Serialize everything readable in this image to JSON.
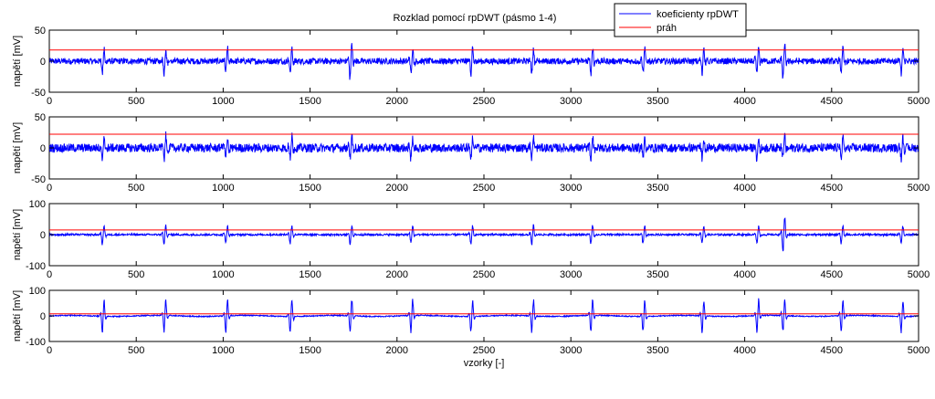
{
  "chart_data": {
    "type": "line",
    "title": "Rozklad pomocí rpDWT (pásmo 1-4)",
    "xlabel": "vzorky [-]",
    "xlim": [
      0,
      5000
    ],
    "xticks": [
      0,
      500,
      1000,
      1500,
      2000,
      2500,
      3000,
      3500,
      4000,
      4500,
      5000
    ],
    "legend": {
      "placement": "top-right",
      "entries": [
        {
          "name": "koeficienty rpDWT",
          "color": "#0000ff"
        },
        {
          "name": "práh",
          "color": "#ff0000"
        }
      ]
    },
    "grid": false,
    "beats": [
      310,
      665,
      1020,
      1390,
      1735,
      2085,
      2430,
      2780,
      3120,
      3420,
      3760,
      4075,
      4225,
      4560,
      4905
    ],
    "panels": [
      {
        "ylabel": "napětí [mV]",
        "ylim": [
          -50,
          50
        ],
        "yticks": [
          -50,
          0,
          50
        ],
        "threshold": 18,
        "noise_amplitude": 5,
        "peak_amplitude": 25,
        "series": [
          {
            "name": "koeficienty rpDWT",
            "color": "#0000ff"
          },
          {
            "name": "práh",
            "color": "#ff0000"
          }
        ]
      },
      {
        "ylabel": "napětí [mV]",
        "ylim": [
          -50,
          50
        ],
        "yticks": [
          -50,
          0,
          50
        ],
        "threshold": 22,
        "noise_amplitude": 7,
        "peak_amplitude": 22,
        "series": [
          {
            "name": "koeficienty rpDWT",
            "color": "#0000ff"
          },
          {
            "name": "práh",
            "color": "#ff0000"
          }
        ]
      },
      {
        "ylabel": "napětí [mV]",
        "ylim": [
          -100,
          100
        ],
        "yticks": [
          -100,
          0,
          100
        ],
        "threshold": 15,
        "noise_amplitude": 3,
        "peak_amplitude": 35,
        "series": [
          {
            "name": "koeficienty rpDWT",
            "color": "#0000ff"
          },
          {
            "name": "práh",
            "color": "#ff0000"
          }
        ]
      },
      {
        "ylabel": "napětí [mV]",
        "ylim": [
          -100,
          100
        ],
        "yticks": [
          -100,
          0,
          100
        ],
        "threshold": 8,
        "noise_amplitude": 2,
        "peak_amplitude": 75,
        "series": [
          {
            "name": "koeficienty rpDWT",
            "color": "#0000ff"
          },
          {
            "name": "práh",
            "color": "#ff0000"
          }
        ]
      }
    ]
  }
}
